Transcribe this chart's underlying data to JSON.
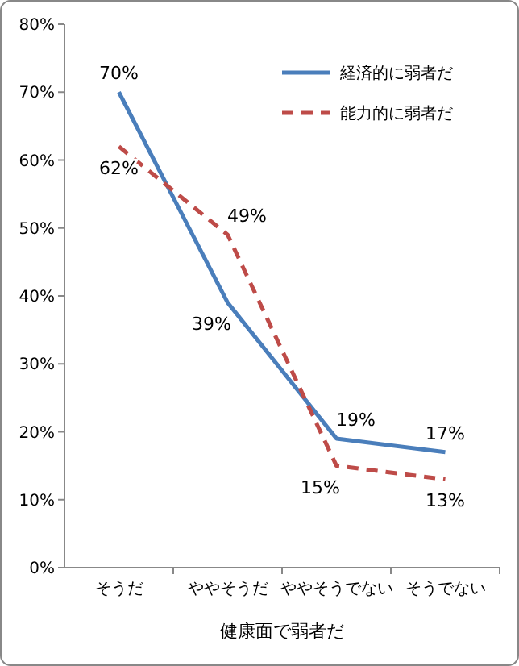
{
  "chart_data": {
    "type": "line",
    "xlabel": "健康面で弱者だ",
    "categories": [
      "そうだ",
      "ややそうだ",
      "ややそうでない",
      "そうでない"
    ],
    "series": [
      {
        "name": "経済的に弱者だ",
        "color": "#4a7ebb",
        "values": [
          70,
          39,
          19,
          17
        ],
        "value_labels": [
          "70%",
          "39%",
          "19%",
          "17%"
        ],
        "line_style": "solid"
      },
      {
        "name": "能力的に弱者だ",
        "color": "#be4b48",
        "values": [
          62,
          49,
          15,
          13
        ],
        "value_labels": [
          "62%",
          "49%",
          "15%",
          "13%"
        ],
        "line_style": "dashed"
      }
    ],
    "ylim": [
      0,
      80
    ],
    "yticks": [
      {
        "value": 0,
        "label": "0%"
      },
      {
        "value": 10,
        "label": "10%"
      },
      {
        "value": 20,
        "label": "20%"
      },
      {
        "value": 30,
        "label": "30%"
      },
      {
        "value": 40,
        "label": "40%"
      },
      {
        "value": 50,
        "label": "50%"
      },
      {
        "value": 60,
        "label": "60%"
      },
      {
        "value": 70,
        "label": "70%"
      },
      {
        "value": 80,
        "label": "80%"
      }
    ],
    "legend": "top right",
    "marker": "none"
  }
}
